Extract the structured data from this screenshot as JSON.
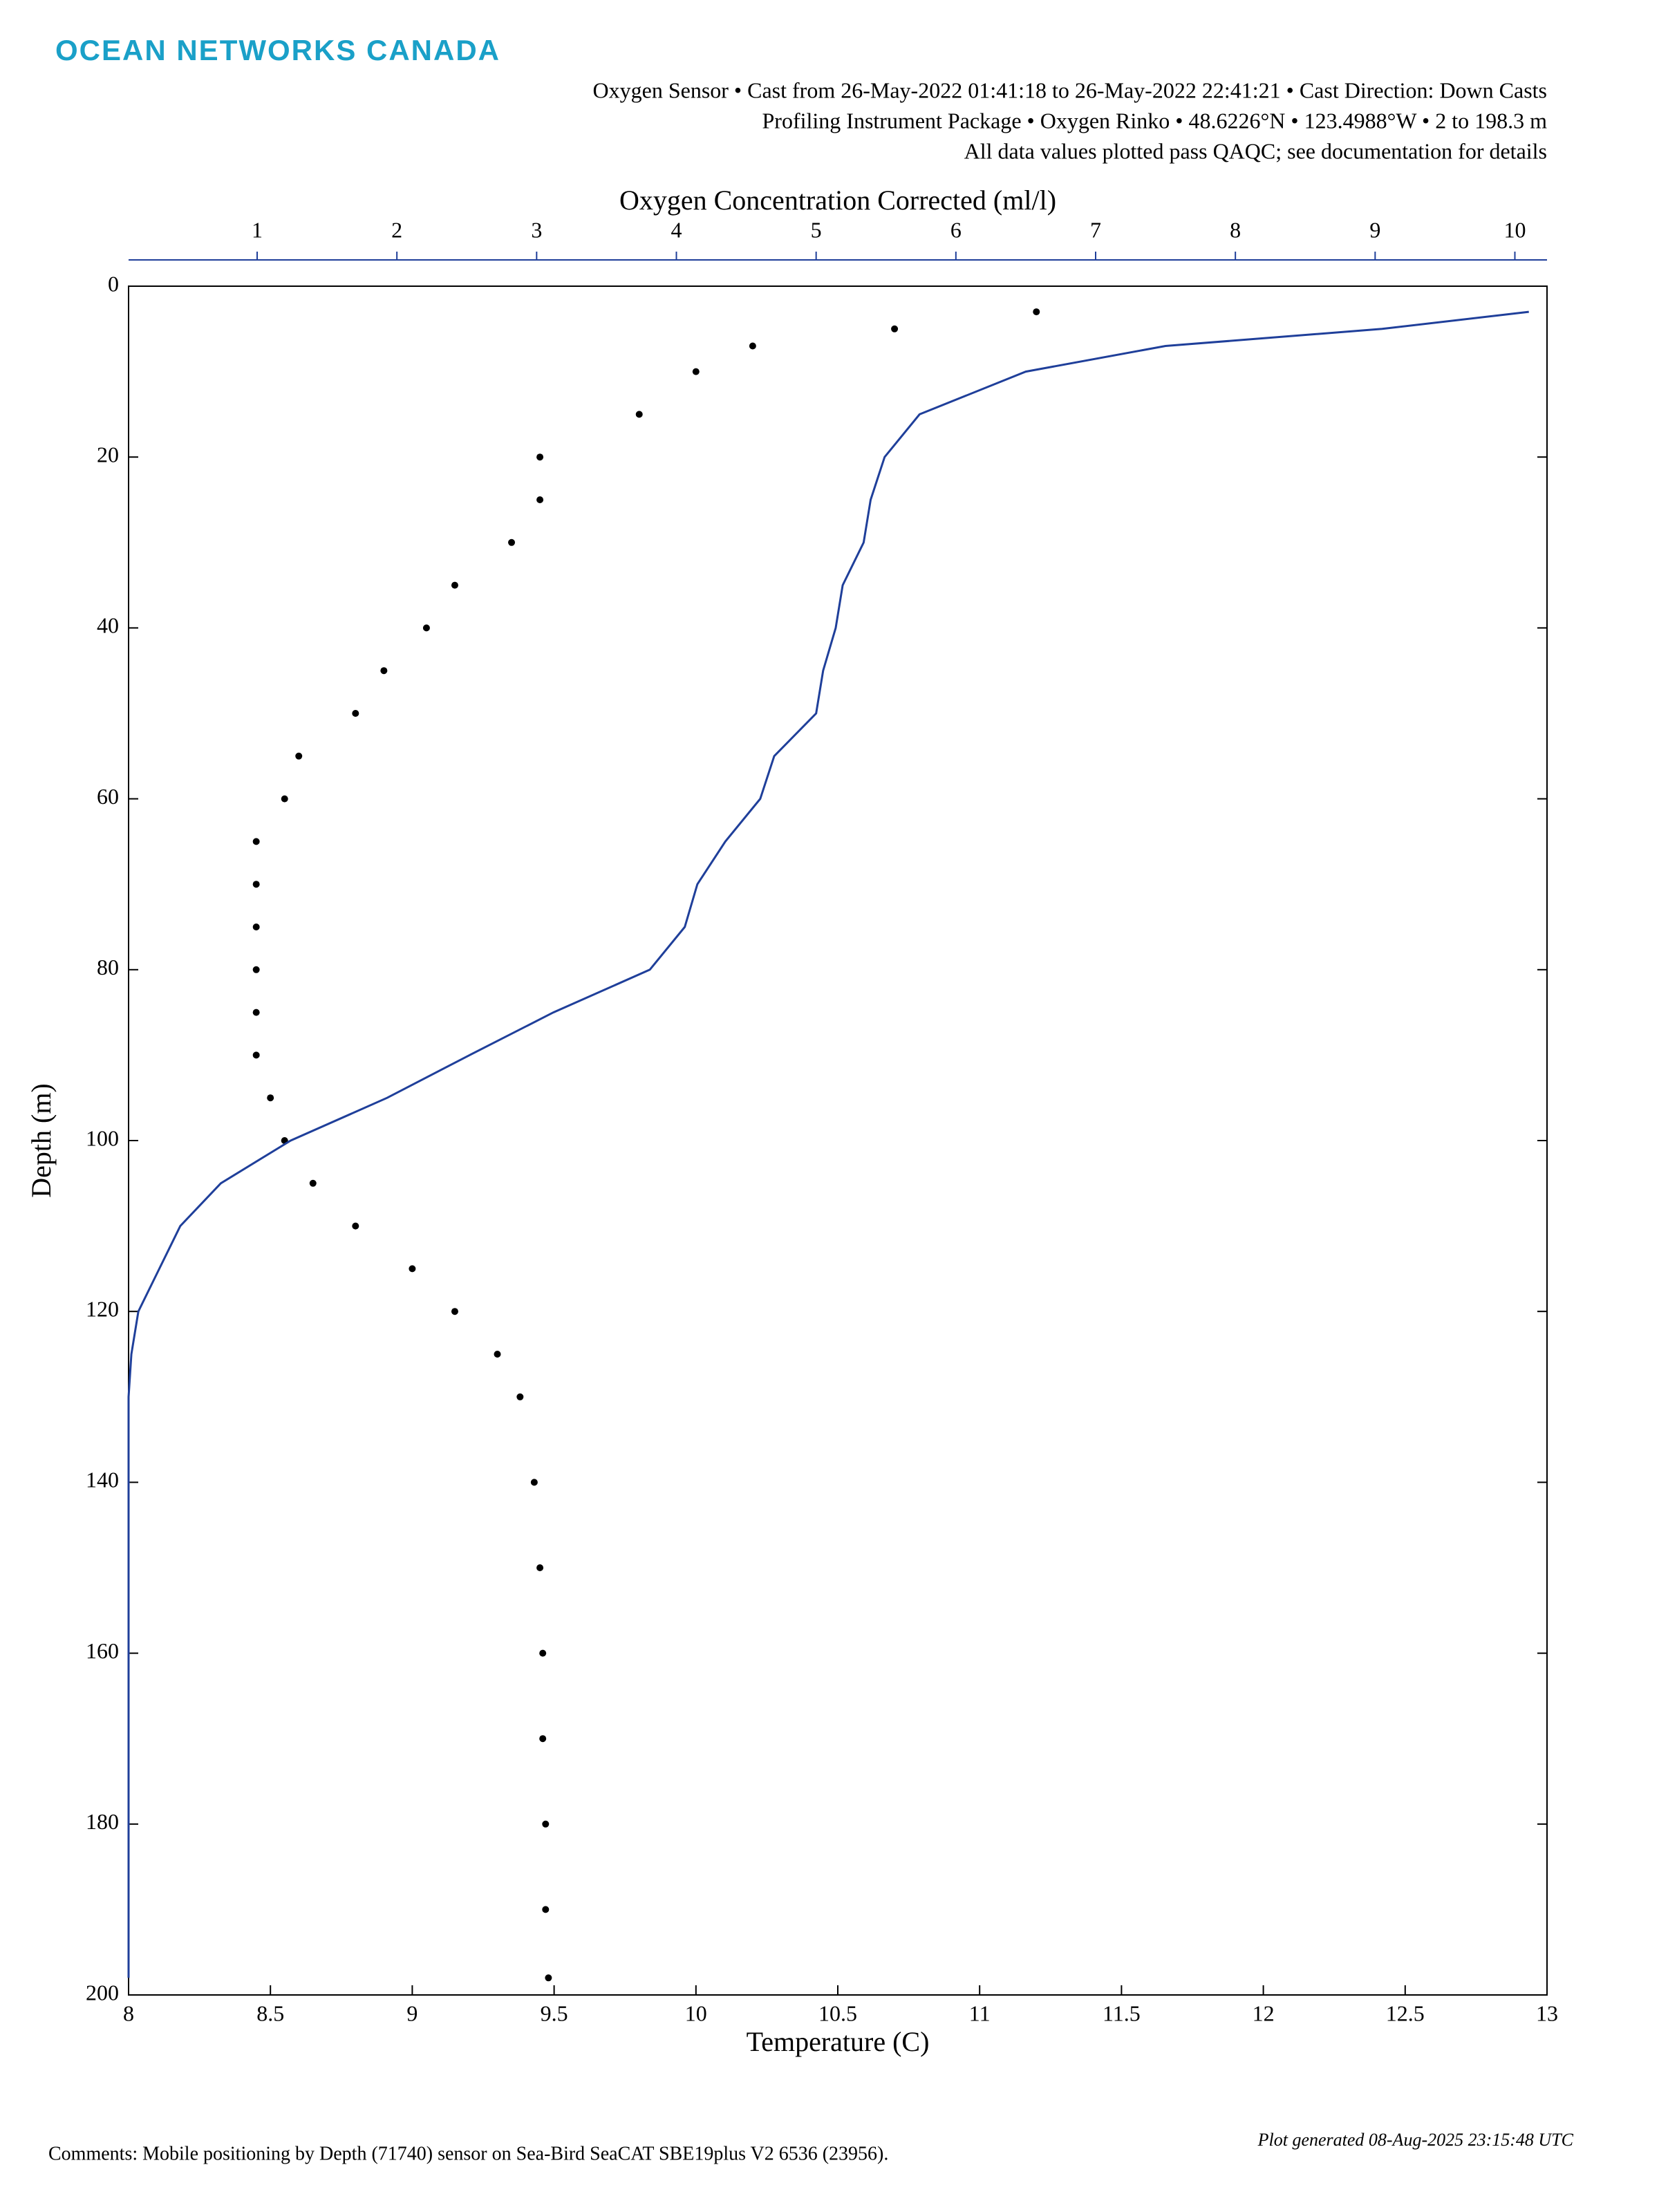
{
  "brand": "OCEAN NETWORKS CANADA",
  "comment": "Comments: Mobile positioning by Depth (71740) sensor on Sea-Bird SeaCAT SBE19plus V2 6536 (23956).",
  "generated": "Plot generated 08-Aug-2025 23:15:48 UTC",
  "chart_data": {
    "type": "profile",
    "subtitle": [
      "Oxygen Sensor • Cast from 26-May-2022 01:41:18 to 26-May-2022 22:41:21 • Cast Direction: Down Casts",
      "Profiling Instrument Package • Oxygen Rinko • 48.6226°N • 123.4988°W • 2 to 198.3 m",
      "All data values plotted pass QAQC; see documentation for details"
    ],
    "xlabel": "Temperature (C)",
    "x2label": "Oxygen Concentration Corrected (ml/l)",
    "ylabel": "Depth (m)",
    "xlim": [
      8,
      13
    ],
    "xticks": [
      8,
      8.5,
      9,
      9.5,
      10,
      10.5,
      11,
      11.5,
      12,
      12.5,
      13
    ],
    "x2lim": [
      0.08,
      10.23
    ],
    "x2ticks": [
      1,
      2,
      3,
      4,
      5,
      6,
      7,
      8,
      9,
      10
    ],
    "x2color": "#1f3f9a",
    "ylim": [
      0,
      200
    ],
    "yticks": [
      0,
      20,
      40,
      60,
      80,
      100,
      120,
      140,
      160,
      180,
      200
    ],
    "depth": [
      3,
      5,
      7,
      10,
      15,
      20,
      25,
      30,
      35,
      40,
      45,
      50,
      55,
      60,
      65,
      70,
      75,
      80,
      85,
      90,
      95,
      100,
      105,
      110,
      115,
      120,
      125,
      130,
      140,
      150,
      160,
      170,
      180,
      190,
      198
    ],
    "series": [
      {
        "color": "#000000",
        "style": "dots",
        "axis": "x",
        "values": [
          11.2,
          10.7,
          10.2,
          10.0,
          9.8,
          9.45,
          9.45,
          9.35,
          9.15,
          9.05,
          8.9,
          8.8,
          8.6,
          8.55,
          8.45,
          8.45,
          8.45,
          8.45,
          8.45,
          8.45,
          8.5,
          8.55,
          8.65,
          8.8,
          9.0,
          9.15,
          9.3,
          9.38,
          9.43,
          9.45,
          9.46,
          9.46,
          9.47,
          9.47,
          9.48
        ]
      },
      {
        "color": "#1f3f9a",
        "style": "line",
        "axis": "x2",
        "values": [
          10.1,
          9.05,
          7.5,
          6.5,
          5.74,
          5.49,
          5.39,
          5.34,
          5.19,
          5.14,
          5.05,
          5.0,
          4.7,
          4.6,
          4.35,
          4.15,
          4.06,
          3.81,
          3.12,
          2.52,
          1.93,
          1.24,
          0.74,
          0.45,
          0.3,
          0.15,
          0.1,
          0.08,
          0.08,
          0.08,
          0.08,
          0.08,
          0.08,
          0.08,
          0.08
        ]
      }
    ]
  }
}
